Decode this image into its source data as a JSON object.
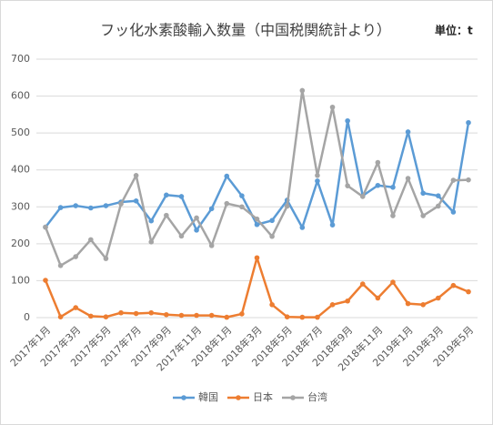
{
  "chart_data": {
    "type": "line",
    "title": "フッ化水素酸輸入数量（中国税関統計より）",
    "unit_label": "単位：t",
    "categories": [
      "2017年1月",
      null,
      "2017年3月",
      null,
      "2017年5月",
      null,
      "2017年7月",
      null,
      "2017年9月",
      null,
      "2017年11月",
      null,
      "2018年1月",
      null,
      "2018年3月",
      null,
      "2018年5月",
      null,
      "2018年7月",
      null,
      "2018年9月",
      null,
      "2018年11月",
      null,
      "2019年1月",
      null,
      "2019年3月",
      null,
      "2019年5月"
    ],
    "series": [
      {
        "name": "韓国",
        "color": "#5b9bd5",
        "values": [
          245,
          298,
          303,
          297,
          303,
          313,
          316,
          262,
          332,
          328,
          237,
          295,
          383,
          330,
          252,
          263,
          318,
          244,
          370,
          251,
          533,
          330,
          358,
          353,
          503,
          337,
          330,
          286,
          528
        ]
      },
      {
        "name": "日本",
        "color": "#ed7d31",
        "values": [
          101,
          2,
          27,
          4,
          2,
          13,
          11,
          13,
          8,
          6,
          6,
          6,
          1,
          10,
          162,
          35,
          2,
          1,
          1,
          35,
          45,
          91,
          53,
          96,
          38,
          35,
          53,
          87,
          70
        ]
      },
      {
        "name": "台湾",
        "color": "#a5a5a5",
        "values": [
          245,
          141,
          165,
          211,
          160,
          308,
          385,
          205,
          277,
          221,
          270,
          195,
          309,
          300,
          267,
          220,
          302,
          615,
          385,
          570,
          357,
          328,
          420,
          276,
          377,
          276,
          302,
          372,
          373
        ]
      }
    ],
    "ylim": [
      0,
      700
    ],
    "yticks": [
      0,
      100,
      200,
      300,
      400,
      500,
      600,
      700
    ],
    "grid": true,
    "legend": "bottom"
  }
}
